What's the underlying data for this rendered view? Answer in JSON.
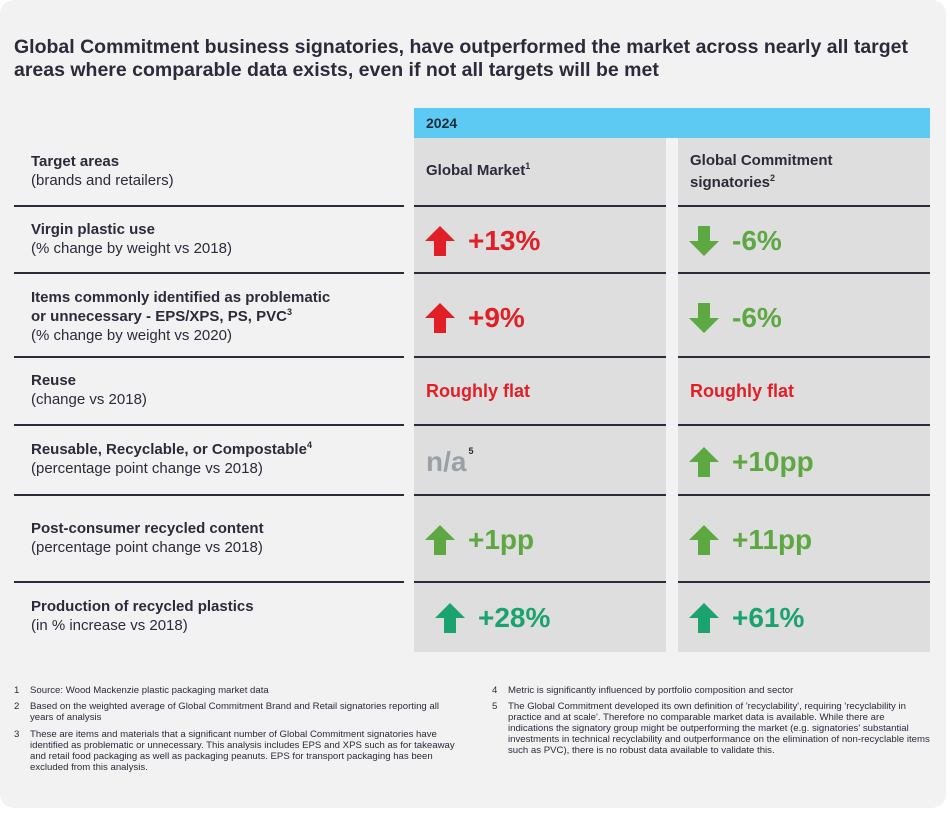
{
  "title": "Global Commitment business signatories, have outperformed the market across nearly all target areas where comparable data exists, even if not all targets will be met",
  "year": "2024",
  "header": {
    "target_title": "Target areas",
    "target_sub": "(brands and retailers)",
    "global_market": "Global Market",
    "global_market_sup": "1",
    "gc_line1": "Global Commitment",
    "gc_line2": "signatories",
    "gc_sup": "2"
  },
  "rows": [
    {
      "title": "Virgin plastic use",
      "sub": "(% change by weight vs 2018)",
      "gm": "+13%",
      "gc": "-6%"
    },
    {
      "title_line1": "Items commonly identified as problematic",
      "title_line2": "or unnecessary - EPS/XPS, PS, PVC",
      "title_sup": "3",
      "sub": "(% change by weight vs 2020)",
      "gm": "+9%",
      "gc": "-6%"
    },
    {
      "title": "Reuse",
      "sub": "(change vs 2018)",
      "gm": "Roughly flat",
      "gc": "Roughly flat"
    },
    {
      "title": "Reusable, Recyclable, or Compostable",
      "title_sup": "4",
      "sub": "(percentage point change vs 2018)",
      "gm": "n/a",
      "gm_sup": "5",
      "gc": "+10pp"
    },
    {
      "title": "Post-consumer recycled content",
      "sub": "(percentage point change vs 2018)",
      "gm": "+1pp",
      "gc": "+11pp"
    },
    {
      "title": "Production of recycled plastics",
      "sub": "(in % increase vs 2018)",
      "gm": "+28%",
      "gc": "+61%"
    }
  ],
  "colors": {
    "up_red": "#e11f26",
    "down_green": "#5ea843",
    "up_green": "#5ea843",
    "up_teal": "#1aa36e",
    "year_bar": "#5ccaf2"
  },
  "footnotes": [
    {
      "num": "1",
      "text": "Source: Wood Mackenzie plastic packaging market data"
    },
    {
      "num": "2",
      "text": "Based on the weighted average of Global Commitment Brand and Retail signatories reporting all years of analysis"
    },
    {
      "num": "3",
      "text": "These are items and materials that a significant number of Global Commitment signatories have identified as problematic or unnecessary. This analysis includes EPS and XPS such as for takeaway and retail food packaging as well as packaging peanuts. EPS for transport packaging has been excluded from this analysis."
    },
    {
      "num": "4",
      "text": "Metric is significantly influenced by portfolio composition and sector"
    },
    {
      "num": "5",
      "text": "The Global Commitment developed its own definition of 'recyclability', requiring 'recyclability in practice and at scale'. Therefore no comparable market data is available. While there are indications the signatory group might be outperforming the market (e.g. signatories' substantial investments in technical recyclability and outperformance on the elimination of non-recyclable items such as PVC), there is no robust data available to validate this."
    }
  ]
}
